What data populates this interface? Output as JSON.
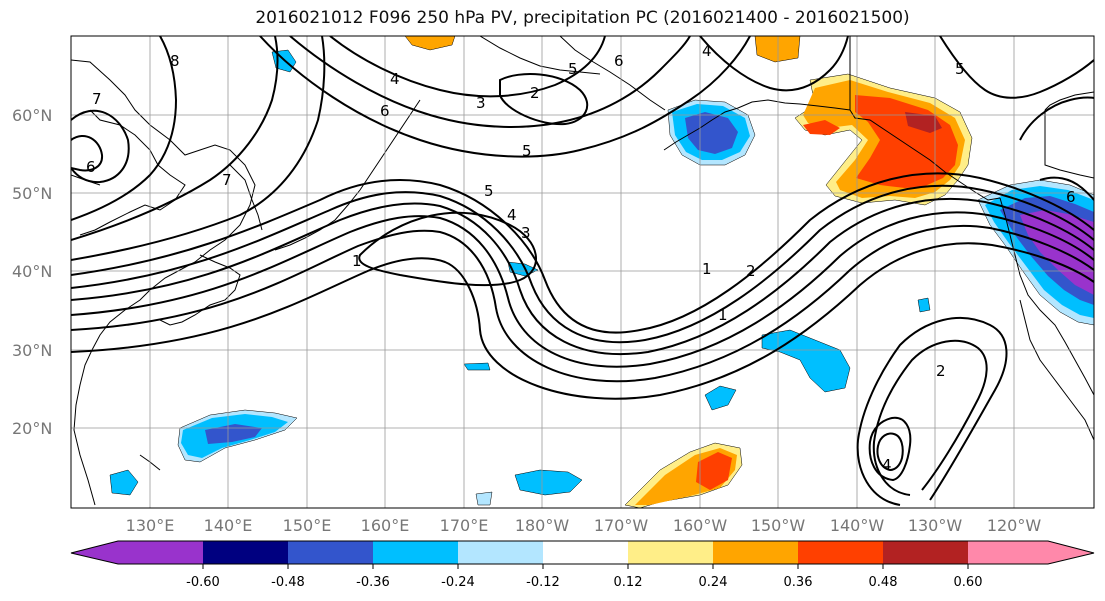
{
  "title": "2016021012 F096 250 hPa PV, precipitation PC (2016021400 - 2016021500)",
  "map": {
    "lat_labels": [
      "60°N",
      "50°N",
      "40°N",
      "30°N",
      "20°N"
    ],
    "lon_labels": [
      "130°E",
      "140°E",
      "150°E",
      "160°E",
      "170°E",
      "180°W",
      "170°W",
      "160°W",
      "150°W",
      "140°W",
      "130°W",
      "120°W"
    ],
    "contour_labels": [
      "8",
      "7",
      "6",
      "7",
      "4",
      "5",
      "6",
      "5",
      "4",
      "3",
      "2",
      "6",
      "5",
      "5",
      "4",
      "3",
      "1",
      "1",
      "2",
      "1",
      "2",
      "4",
      "6"
    ]
  },
  "colorbar": {
    "colors": [
      "#9933cc",
      "#000080",
      "#3355cc",
      "#00bfff",
      "#b3e6ff",
      "#ffffff",
      "#ffee88",
      "#ffa500",
      "#ff4000",
      "#b22222",
      "#ff88aa"
    ],
    "tick_labels": [
      "-0.60",
      "-0.48",
      "-0.36",
      "-0.24",
      "-0.12",
      "0.12",
      "0.24",
      "0.36",
      "0.48",
      "0.60"
    ]
  }
}
